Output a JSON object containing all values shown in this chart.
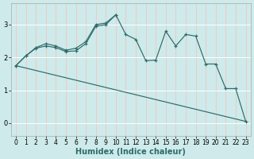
{
  "xlabel": "Humidex (Indice chaleur)",
  "background_color": "#ceeaea",
  "grid_color": "#f0c8c8",
  "line_color": "#2d6b6b",
  "x_all": [
    0,
    1,
    2,
    3,
    4,
    5,
    6,
    7,
    8,
    9,
    10,
    11,
    12,
    13,
    14,
    15,
    16,
    17,
    18,
    19,
    20,
    21,
    22,
    23
  ],
  "line1_y": [
    1.75,
    2.05,
    2.28,
    2.35,
    2.3,
    2.18,
    2.2,
    2.42,
    2.95,
    3.0,
    3.3,
    2.7,
    2.55,
    1.9,
    1.92,
    2.8,
    2.35,
    2.7,
    2.65,
    1.8,
    1.8,
    1.05,
    1.05,
    0.05
  ],
  "line2_x": [
    0,
    1,
    2,
    3,
    4,
    5,
    6,
    7,
    8,
    9,
    10
  ],
  "line2_y": [
    1.75,
    2.05,
    2.3,
    2.42,
    2.35,
    2.22,
    2.28,
    2.48,
    3.0,
    3.05,
    3.3
  ],
  "line3_x": [
    0,
    23
  ],
  "line3_y": [
    1.75,
    0.05
  ],
  "ylim": [
    -0.4,
    3.65
  ],
  "xlim": [
    -0.5,
    23.5
  ],
  "yticks": [
    0,
    1,
    2,
    3
  ],
  "xticks": [
    0,
    1,
    2,
    3,
    4,
    5,
    6,
    7,
    8,
    9,
    10,
    11,
    12,
    13,
    14,
    15,
    16,
    17,
    18,
    19,
    20,
    21,
    22,
    23
  ],
  "tick_fontsize": 5.5,
  "xlabel_fontsize": 7.0
}
